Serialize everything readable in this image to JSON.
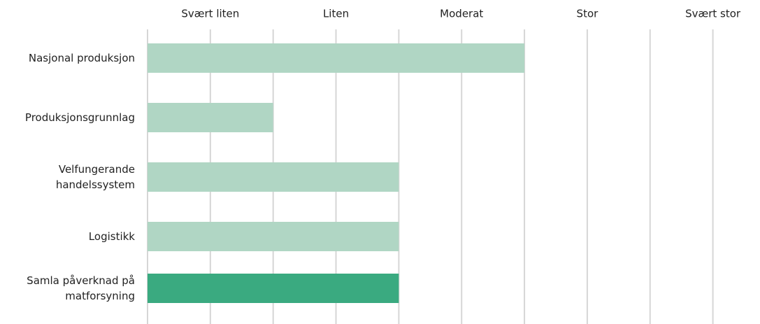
{
  "chart_data": {
    "type": "bar",
    "orientation": "horizontal",
    "categories": [
      "Nasjonal produksjon",
      "Produksjonsgrunnlag",
      "Velfungerande handelssystem",
      "Logistikk",
      "Samla påverknad på matforsyning"
    ],
    "values": [
      6,
      2,
      4,
      4,
      4
    ],
    "colors": [
      "#b0d6c4",
      "#b0d6c4",
      "#b0d6c4",
      "#b0d6c4",
      "#3aaa80"
    ],
    "xlim": [
      0,
      9.75
    ],
    "xticks": [
      {
        "value": 1,
        "label": "Svært liten"
      },
      {
        "value": 3,
        "label": "Liten"
      },
      {
        "value": 5,
        "label": "Moderat"
      },
      {
        "value": 7,
        "label": "Stor"
      },
      {
        "value": 9,
        "label": "Svært stor"
      }
    ],
    "x_minor_ticks": [
      0,
      2,
      4,
      6,
      8
    ],
    "grid": true
  }
}
